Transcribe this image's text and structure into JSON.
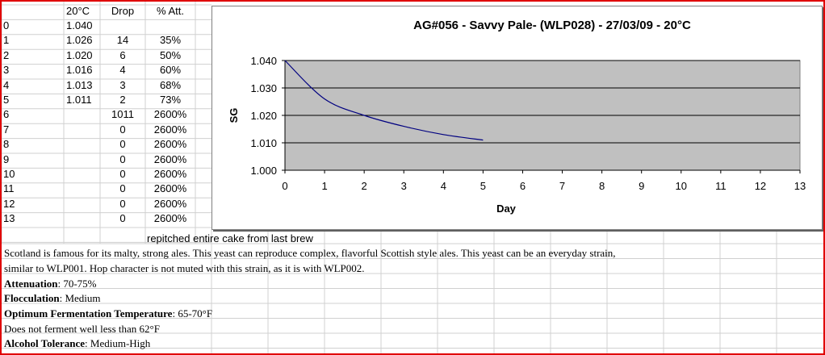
{
  "table": {
    "headers": [
      "",
      "20°C",
      "Drop",
      "% Att."
    ],
    "rows": [
      [
        "0",
        "1.040",
        "",
        ""
      ],
      [
        "1",
        "1.026",
        "14",
        "35%"
      ],
      [
        "2",
        "1.020",
        "6",
        "50%"
      ],
      [
        "3",
        "1.016",
        "4",
        "60%"
      ],
      [
        "4",
        "1.013",
        "3",
        "68%"
      ],
      [
        "5",
        "1.011",
        "2",
        "73%"
      ],
      [
        "6",
        "",
        "1011",
        "2600%"
      ],
      [
        "7",
        "",
        "0",
        "2600%"
      ],
      [
        "8",
        "",
        "0",
        "2600%"
      ],
      [
        "9",
        "",
        "0",
        "2600%"
      ],
      [
        "10",
        "",
        "0",
        "2600%"
      ],
      [
        "11",
        "",
        "0",
        "2600%"
      ],
      [
        "12",
        "",
        "0",
        "2600%"
      ],
      [
        "13",
        "",
        "0",
        "2600%"
      ]
    ],
    "note": "repitched entire cake from last brew"
  },
  "description": {
    "line1": "Scotland is famous for its malty, strong ales. This yeast can reproduce complex, flavorful Scottish style ales. This yeast can be an everyday strain,",
    "line2": "similar to WLP001. Hop character is not muted with this strain, as it is with WLP002.",
    "attenuation_label": "Attenuation",
    "attenuation_value": ": 70-75%",
    "flocculation_label": "Flocculation",
    "flocculation_value": ": Medium",
    "temp_label": "Optimum Fermentation Temperature",
    "temp_value": ": 65-70°F",
    "temp_note": "Does not ferment well less than 62°F",
    "alcohol_label": "Alcohol Tolerance",
    "alcohol_value": ": Medium-High"
  },
  "chart_data": {
    "type": "line",
    "title": "AG#056 - Savvy Pale- (WLP028) - 27/03/09 - 20°C",
    "xlabel": "Day",
    "ylabel": "SG",
    "xlim": [
      0,
      13
    ],
    "ylim": [
      1.0,
      1.04
    ],
    "xticks": [
      "0",
      "1",
      "2",
      "3",
      "4",
      "5",
      "6",
      "7",
      "8",
      "9",
      "10",
      "11",
      "12",
      "13"
    ],
    "yticks": [
      "1.000",
      "1.010",
      "1.020",
      "1.030",
      "1.040"
    ],
    "grid": true,
    "plot_background": "#c0c0c0",
    "line_color": "#000080",
    "series": [
      {
        "x": [
          0,
          1,
          2,
          3,
          4,
          5
        ],
        "values": [
          1.04,
          1.026,
          1.02,
          1.016,
          1.013,
          1.011
        ]
      }
    ]
  }
}
